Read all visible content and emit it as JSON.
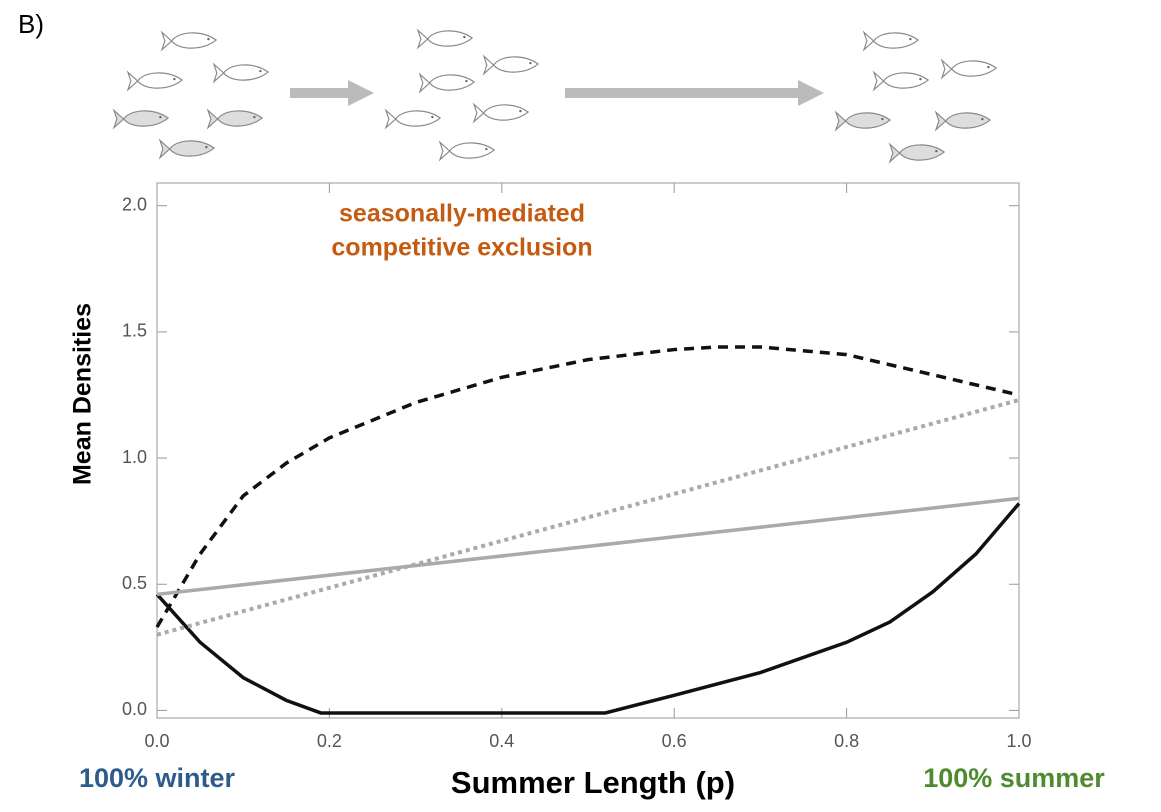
{
  "panel_label": "B)",
  "chart_data": {
    "type": "line",
    "xlabel": "Summer Length (p)",
    "ylabel": "Mean Densities",
    "annotation": [
      "seasonally-mediated",
      "competitive exclusion"
    ],
    "annotation_color": "#c55a11",
    "x_end_labels": {
      "left": "100% winter",
      "right": "100% summer"
    },
    "x_end_colors": {
      "left": "#2e5c8a",
      "right": "#4e8a2e"
    },
    "xlim": [
      0,
      1.0
    ],
    "ylim": [
      -0.03,
      2.09
    ],
    "xticks": [
      {
        "value": 0,
        "label": "0.0"
      },
      0.2,
      0.4,
      0.6,
      0.8,
      {
        "value": 1,
        "label": "1.0"
      }
    ],
    "yticks": [
      {
        "value": 0,
        "label": "0.0"
      },
      0.5,
      {
        "value": 1,
        "label": "1.0"
      },
      1.5,
      {
        "value": 2,
        "label": "2.0"
      }
    ],
    "series": [
      {
        "color": "#111111",
        "style": "dashed",
        "x": [
          0,
          0.05,
          0.1,
          0.15,
          0.2,
          0.3,
          0.4,
          0.5,
          0.6,
          0.65,
          0.7,
          0.8,
          0.9,
          0.95,
          1.0
        ],
        "values": [
          0.33,
          0.62,
          0.85,
          0.98,
          1.08,
          1.22,
          1.32,
          1.39,
          1.43,
          1.44,
          1.44,
          1.41,
          1.33,
          1.29,
          1.25
        ]
      },
      {
        "color": "#111111",
        "style": "solid",
        "x": [
          0,
          0.05,
          0.1,
          0.15,
          0.19,
          0.3,
          0.4,
          0.52,
          0.6,
          0.7,
          0.8,
          0.85,
          0.9,
          0.95,
          1.0
        ],
        "values": [
          0.46,
          0.27,
          0.13,
          0.04,
          -0.01,
          -0.01,
          -0.01,
          -0.01,
          0.06,
          0.15,
          0.27,
          0.35,
          0.47,
          0.62,
          0.82
        ]
      },
      {
        "color": "#aaaaaa",
        "style": "solid",
        "x": [
          0,
          1.0
        ],
        "values": [
          0.46,
          0.84
        ]
      },
      {
        "color": "#aaaaaa",
        "style": "dotted",
        "x": [
          0,
          1.0
        ],
        "values": [
          0.3,
          1.23
        ]
      }
    ]
  }
}
